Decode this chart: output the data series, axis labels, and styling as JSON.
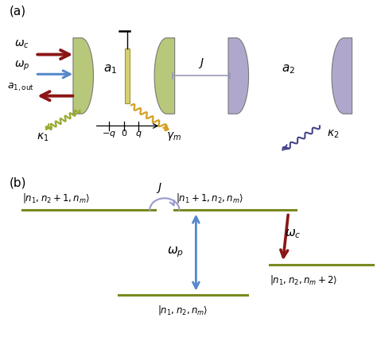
{
  "background": "#ffffff",
  "cavity1_color": "#b8c87a",
  "cavity2_color": "#b0a8cc",
  "movable_mirror_color": "#d8d070",
  "arrow_red": "#8b1515",
  "arrow_blue": "#5588cc",
  "kappa1_color": "#9aaa30",
  "gamma_color": "#d4a020",
  "kappa2_color": "#444488",
  "coupling_line_color": "#9999cc",
  "level_color": "#7a8a20",
  "J_line_color": "#9999bb",
  "spring_color": "#d4a020"
}
